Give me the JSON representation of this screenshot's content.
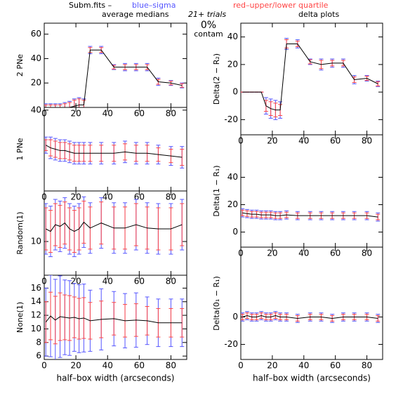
{
  "header": {
    "file": "Subm.fits  –",
    "sigma": "blue–sigma",
    "sigma_color": "#5555ff",
    "quartile": "red–upper/lower quartile",
    "quartile_color": "#ff4444",
    "left_title": "average medians",
    "trials": "21+ trials",
    "right_title": "delta plots",
    "contam_pct": "0%",
    "contam": "contam"
  },
  "chart_data": [
    {
      "type": "line",
      "ylabel": "2 PNe",
      "color": "#000000",
      "xlim": [
        0,
        90
      ],
      "xticks": [
        0,
        20,
        40,
        60,
        80
      ],
      "ylim": [
        0,
        69
      ],
      "yticks": [
        20,
        40,
        60
      ],
      "x": [
        1,
        4,
        7,
        10,
        13,
        16,
        19,
        22,
        25,
        29,
        36,
        44,
        51,
        58,
        65,
        72,
        80,
        87
      ],
      "series": [
        {
          "values": [
            0,
            0,
            0,
            0,
            0,
            0,
            1,
            2,
            2,
            47,
            47,
            33,
            33,
            33,
            33,
            21,
            20,
            18
          ],
          "sigma": [
            3,
            3,
            3,
            3,
            4,
            5,
            6,
            6,
            5,
            3,
            3,
            2,
            3,
            3,
            3,
            3,
            2,
            2
          ],
          "quartile": [
            2,
            2,
            2,
            2,
            3,
            4,
            5,
            5,
            4,
            2,
            2,
            1.5,
            2,
            2,
            2,
            2,
            1.5,
            1.5
          ]
        }
      ]
    },
    {
      "type": "line",
      "ylabel": "1 PNe",
      "color": "#000000",
      "xlim": [
        0,
        90
      ],
      "xticks": [
        0,
        20,
        40,
        60,
        80
      ],
      "ylim": [
        10,
        41
      ],
      "yticks": [
        40
      ],
      "x": [
        1,
        4,
        7,
        10,
        13,
        16,
        19,
        22,
        25,
        29,
        36,
        44,
        51,
        58,
        65,
        72,
        80,
        87
      ],
      "series": [
        {
          "values": [
            27,
            26,
            25.5,
            25,
            25,
            24.5,
            24,
            24,
            24,
            24,
            24,
            24,
            24.5,
            24,
            24,
            23.5,
            23,
            22.5
          ],
          "sigma": [
            3,
            4,
            4,
            4,
            4,
            4,
            4,
            4,
            4,
            4,
            4,
            4,
            4,
            4,
            4,
            3.5,
            3.5,
            4
          ],
          "quartile": [
            2,
            3,
            3,
            3,
            3,
            3,
            3,
            3,
            3,
            3,
            3,
            3,
            3,
            3,
            3,
            2.5,
            2.5,
            3
          ]
        }
      ]
    },
    {
      "type": "line",
      "ylabel": "Random(1)",
      "color": "#000000",
      "xlim": [
        0,
        90
      ],
      "xticks": [
        0,
        20,
        40,
        60,
        80
      ],
      "ylim": [
        6,
        16
      ],
      "yticks": [
        10
      ],
      "x": [
        1,
        4,
        7,
        10,
        13,
        16,
        19,
        22,
        25,
        29,
        36,
        44,
        51,
        58,
        65,
        72,
        80,
        87
      ],
      "series": [
        {
          "values": [
            11.5,
            11.2,
            12,
            11.8,
            12.2,
            11.5,
            11.2,
            11.5,
            12.3,
            11.6,
            12.2,
            11.6,
            11.6,
            12,
            11.6,
            11.5,
            11.5,
            12
          ],
          "sigma": [
            3,
            3,
            3,
            3,
            3,
            3,
            3,
            3,
            3,
            3,
            3,
            3,
            3,
            3,
            3,
            3,
            3,
            3
          ],
          "quartile": [
            2.5,
            2.5,
            2.5,
            2.5,
            2.5,
            2.5,
            2.5,
            2.5,
            2.5,
            2.5,
            2.5,
            2.5,
            2.5,
            2.5,
            2.5,
            2.5,
            2.5,
            2.5
          ]
        }
      ]
    },
    {
      "type": "line",
      "ylabel": "None(1)",
      "xlabel": "half–box width (arcseconds)",
      "color": "#000000",
      "xlim": [
        0,
        90
      ],
      "xticks": [
        0,
        20,
        40,
        60,
        80
      ],
      "ylim": [
        5.5,
        17.9
      ],
      "yticks": [
        6,
        8,
        10,
        12,
        14,
        16
      ],
      "x": [
        1,
        4,
        7,
        10,
        13,
        16,
        19,
        22,
        25,
        29,
        36,
        44,
        51,
        58,
        65,
        72,
        80,
        87
      ],
      "series": [
        {
          "values": [
            11,
            11.9,
            11.3,
            11.8,
            11.7,
            11.6,
            11.7,
            11.5,
            11.6,
            11.2,
            11.4,
            11.5,
            11.2,
            11.3,
            11.2,
            10.9,
            10.9,
            10.9
          ],
          "sigma": [
            5,
            6,
            6,
            6,
            5.5,
            5.5,
            5,
            5,
            5,
            4.5,
            4.5,
            4,
            4,
            4,
            3.5,
            3.5,
            3.5,
            3.5
          ],
          "quartile": [
            3,
            3.5,
            3.5,
            3.5,
            3.3,
            3.3,
            3,
            3,
            3,
            2.7,
            2.7,
            2.4,
            2.4,
            2.4,
            2.1,
            2.1,
            2.1,
            2.1
          ]
        }
      ]
    },
    {
      "type": "line",
      "ylabel": "Delta(2 − R₂)",
      "color": "#000000",
      "xlim": [
        0,
        90
      ],
      "xticks": [
        0,
        20,
        40,
        60,
        80
      ],
      "ylim": [
        -31,
        50
      ],
      "yticks": [
        -20,
        0,
        20,
        40
      ],
      "x": [
        1,
        4,
        7,
        10,
        13,
        16,
        19,
        22,
        25,
        29,
        36,
        44,
        51,
        58,
        65,
        72,
        80,
        87
      ],
      "series": [
        {
          "values": [
            0,
            0,
            0,
            0,
            0,
            -10,
            -12,
            -13,
            -13,
            35,
            35,
            22,
            20,
            21,
            21,
            9,
            10,
            6
          ],
          "sigma": [
            0,
            0,
            0,
            0,
            0,
            6,
            7,
            7,
            6,
            4,
            3,
            2,
            4,
            3,
            3,
            3,
            2,
            2
          ],
          "quartile": [
            0,
            0,
            0,
            0,
            0,
            4,
            5,
            5,
            4,
            3,
            2,
            1.5,
            3,
            2,
            2,
            2,
            1.5,
            1.5
          ]
        }
      ]
    },
    {
      "type": "line",
      "ylabel": "Delta(1 − R₁)",
      "color": "#000000",
      "xlim": [
        0,
        90
      ],
      "xticks": [
        0,
        20,
        40,
        60,
        80
      ],
      "ylim": [
        -11,
        71
      ],
      "yticks": [
        0,
        20,
        40
      ],
      "x": [
        1,
        4,
        7,
        10,
        13,
        16,
        19,
        22,
        25,
        29,
        36,
        44,
        51,
        58,
        65,
        72,
        80,
        87
      ],
      "series": [
        {
          "values": [
            14,
            13.5,
            13,
            13,
            12.5,
            12.5,
            12.5,
            12,
            12,
            12.5,
            12,
            12,
            12,
            12,
            12,
            12,
            12,
            11
          ],
          "sigma": [
            3,
            3,
            3,
            3,
            3,
            3,
            3,
            3,
            3,
            3,
            3,
            3,
            3,
            3,
            3,
            3,
            3,
            3
          ],
          "quartile": [
            2,
            2,
            2,
            2,
            2,
            2,
            2,
            2,
            2,
            2,
            2,
            2,
            2,
            2,
            2,
            2,
            2,
            2
          ]
        }
      ]
    },
    {
      "type": "line",
      "ylabel": "Delta(0₁ − R₁)",
      "xlabel": "half–box width (arcseconds)",
      "color": "#000000",
      "xlim": [
        0,
        90
      ],
      "xticks": [
        0,
        20,
        40,
        60,
        80
      ],
      "ylim": [
        -31,
        51
      ],
      "yticks": [
        -20,
        0
      ],
      "x": [
        1,
        4,
        7,
        10,
        13,
        16,
        19,
        22,
        25,
        29,
        36,
        44,
        51,
        58,
        65,
        72,
        80,
        87
      ],
      "series": [
        {
          "values": [
            0,
            1,
            0,
            0,
            1,
            0,
            0,
            1,
            0,
            0,
            -1,
            0,
            0,
            -1,
            0,
            0,
            0,
            -1
          ],
          "sigma": [
            3,
            3,
            3,
            3,
            3,
            3,
            3,
            3,
            3,
            3,
            3,
            3,
            3,
            3,
            3,
            3,
            3,
            3
          ],
          "quartile": [
            2,
            2,
            2,
            2,
            2,
            2,
            2,
            2,
            2,
            2,
            2,
            2,
            2,
            2,
            2,
            2,
            2,
            2
          ]
        }
      ]
    }
  ]
}
